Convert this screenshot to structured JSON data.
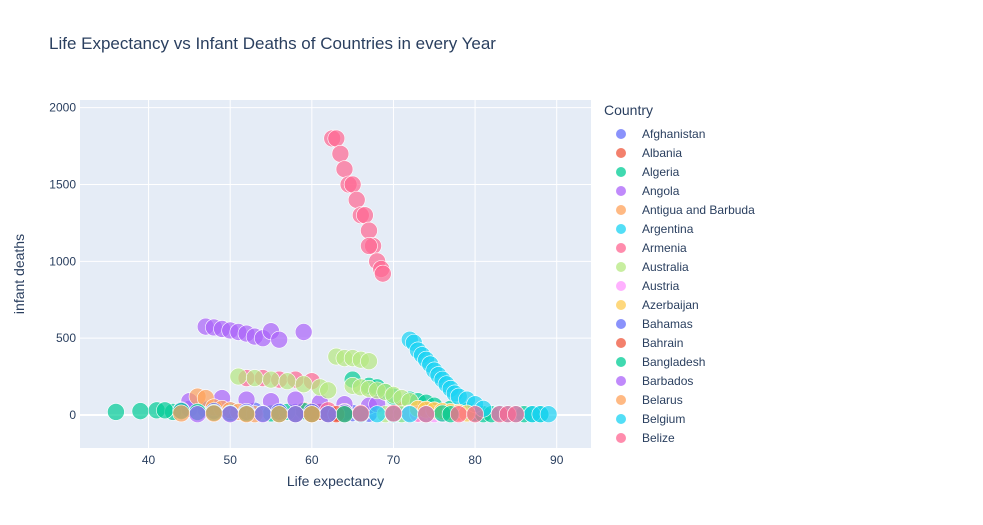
{
  "chart_data": {
    "type": "scatter",
    "title": "Life Expectancy vs Infant Deaths of Countries in every Year",
    "xlabel": "Life expectancy",
    "ylabel": "infant deaths",
    "xlim": [
      31.6,
      94.2
    ],
    "ylim": [
      -215,
      2050
    ],
    "xticks": [
      40,
      50,
      60,
      70,
      80,
      90
    ],
    "yticks": [
      0,
      500,
      1000,
      1500,
      2000
    ],
    "grid": true,
    "legend_title": "Country",
    "legend_position": "right",
    "series": [
      {
        "name": "Afghanistan",
        "color": "#636efa",
        "points": [
          [
            45,
            40
          ],
          [
            47,
            35
          ],
          [
            50,
            30
          ],
          [
            53,
            28
          ],
          [
            56,
            25
          ],
          [
            58,
            20
          ],
          [
            61,
            18
          ],
          [
            63,
            15
          ],
          [
            65,
            12
          ],
          [
            66,
            10
          ],
          [
            67,
            8
          ]
        ]
      },
      {
        "name": "Albania",
        "color": "#EF553B",
        "points": [
          [
            59,
            30
          ],
          [
            60,
            25
          ],
          [
            61,
            20
          ],
          [
            62,
            15
          ],
          [
            63,
            10
          ],
          [
            71,
            40
          ],
          [
            72,
            5
          ],
          [
            73,
            8
          ]
        ]
      },
      {
        "name": "Algeria",
        "color": "#00cc96",
        "points": [
          [
            36,
            20
          ],
          [
            39,
            25
          ],
          [
            41,
            30
          ],
          [
            43,
            20
          ],
          [
            46,
            15
          ],
          [
            48,
            30
          ],
          [
            50,
            20
          ],
          [
            52,
            15
          ],
          [
            55,
            10
          ],
          [
            57,
            20
          ],
          [
            59,
            25
          ],
          [
            65,
            230
          ],
          [
            67,
            190
          ],
          [
            68,
            180
          ],
          [
            69,
            150
          ],
          [
            70,
            120
          ],
          [
            72,
            100
          ],
          [
            73,
            90
          ],
          [
            74,
            80
          ],
          [
            75,
            60
          ],
          [
            77,
            40
          ],
          [
            78,
            20
          ],
          [
            79,
            25
          ],
          [
            80,
            10
          ],
          [
            81,
            5
          ],
          [
            82,
            5
          ],
          [
            86,
            5
          ],
          [
            87,
            5
          ],
          [
            88,
            5
          ]
        ]
      },
      {
        "name": "Angola",
        "color": "#ab63fa",
        "points": [
          [
            47,
            575
          ],
          [
            48,
            570
          ],
          [
            49,
            560
          ],
          [
            50,
            550
          ],
          [
            51,
            540
          ],
          [
            52,
            530
          ],
          [
            53,
            510
          ],
          [
            54,
            500
          ],
          [
            55,
            545
          ],
          [
            56,
            490
          ],
          [
            59,
            540
          ],
          [
            45,
            90
          ],
          [
            49,
            110
          ],
          [
            52,
            100
          ],
          [
            55,
            90
          ],
          [
            58,
            100
          ],
          [
            61,
            80
          ],
          [
            64,
            70
          ],
          [
            67,
            60
          ],
          [
            68,
            70
          ]
        ]
      },
      {
        "name": "Antigua and Barbuda",
        "color": "#FFA15A",
        "points": [
          [
            46,
            120
          ],
          [
            47,
            110
          ],
          [
            48,
            50
          ],
          [
            49,
            40
          ],
          [
            50,
            30
          ],
          [
            51,
            20
          ],
          [
            52,
            10
          ],
          [
            53,
            5
          ],
          [
            73,
            40
          ],
          [
            74,
            30
          ],
          [
            75,
            25
          ],
          [
            76,
            20
          ],
          [
            77,
            15
          ],
          [
            78,
            10
          ]
        ]
      },
      {
        "name": "Argentina",
        "color": "#19d3f3",
        "points": [
          [
            71,
            5
          ],
          [
            72,
            490
          ],
          [
            72.5,
            470
          ],
          [
            73,
            420
          ],
          [
            73.5,
            390
          ],
          [
            74,
            360
          ],
          [
            74.5,
            330
          ],
          [
            75,
            290
          ],
          [
            75.5,
            260
          ],
          [
            76,
            230
          ],
          [
            76.5,
            200
          ],
          [
            77,
            170
          ],
          [
            77.5,
            140
          ],
          [
            78,
            120
          ],
          [
            79,
            100
          ],
          [
            80,
            70
          ],
          [
            81,
            40
          ],
          [
            83,
            10
          ],
          [
            84,
            5
          ],
          [
            85,
            5
          ],
          [
            87,
            5
          ],
          [
            88,
            5
          ],
          [
            89,
            5
          ]
        ]
      },
      {
        "name": "Armenia",
        "color": "#FF6692",
        "points": [
          [
            62.5,
            1800
          ],
          [
            63,
            1800
          ],
          [
            63.5,
            1700
          ],
          [
            64,
            1600
          ],
          [
            64.5,
            1500
          ],
          [
            65,
            1500
          ],
          [
            65.5,
            1400
          ],
          [
            66,
            1300
          ],
          [
            66.5,
            1300
          ],
          [
            67,
            1200
          ],
          [
            67.5,
            1100
          ],
          [
            67,
            1100
          ],
          [
            68,
            1000
          ],
          [
            68.5,
            950
          ],
          [
            68.7,
            920
          ],
          [
            52,
            240
          ],
          [
            54,
            240
          ],
          [
            56,
            230
          ],
          [
            58,
            230
          ],
          [
            60,
            220
          ],
          [
            62,
            30
          ],
          [
            64,
            20
          ],
          [
            83,
            5
          ],
          [
            84,
            5
          ],
          [
            85,
            5
          ]
        ]
      },
      {
        "name": "Australia",
        "color": "#B6E880",
        "points": [
          [
            51,
            250
          ],
          [
            53,
            240
          ],
          [
            55,
            230
          ],
          [
            57,
            220
          ],
          [
            59,
            200
          ],
          [
            61,
            180
          ],
          [
            62,
            160
          ],
          [
            63,
            380
          ],
          [
            64,
            370
          ],
          [
            65,
            370
          ],
          [
            66,
            360
          ],
          [
            67,
            350
          ],
          [
            65,
            190
          ],
          [
            66,
            180
          ],
          [
            67,
            170
          ],
          [
            68,
            160
          ],
          [
            69,
            150
          ],
          [
            70,
            130
          ],
          [
            71,
            110
          ],
          [
            72,
            90
          ],
          [
            69,
            5
          ],
          [
            70,
            5
          ],
          [
            71,
            5
          ],
          [
            72,
            10
          ]
        ]
      },
      {
        "name": "Austria",
        "color": "#FF97FF",
        "points": [
          [
            72,
            10
          ],
          [
            73,
            8
          ],
          [
            74,
            6
          ],
          [
            75,
            5
          ],
          [
            76,
            5
          ]
        ]
      },
      {
        "name": "Azerbaijan",
        "color": "#FECB52",
        "points": [
          [
            73,
            40
          ],
          [
            74,
            35
          ],
          [
            75,
            30
          ],
          [
            76,
            25
          ],
          [
            77,
            20
          ],
          [
            78,
            15
          ],
          [
            79,
            10
          ]
        ]
      },
      {
        "name": "Bahamas",
        "color": "#636efa",
        "points": [
          [
            44,
            30
          ],
          [
            48,
            25
          ],
          [
            52,
            20
          ],
          [
            56,
            20
          ],
          [
            60,
            20
          ],
          [
            64,
            15
          ],
          [
            66,
            10
          ]
        ]
      },
      {
        "name": "Bahrain",
        "color": "#EF553B",
        "points": [
          [
            58,
            5
          ],
          [
            60,
            5
          ],
          [
            62,
            5
          ],
          [
            63,
            5
          ],
          [
            64,
            5
          ]
        ]
      },
      {
        "name": "Bangladesh",
        "color": "#00cc96",
        "points": [
          [
            42,
            30
          ],
          [
            44,
            25
          ],
          [
            46,
            20
          ],
          [
            48,
            15
          ],
          [
            50,
            10
          ],
          [
            52,
            10
          ],
          [
            54,
            8
          ],
          [
            56,
            5
          ],
          [
            58,
            5
          ],
          [
            60,
            5
          ],
          [
            62,
            5
          ],
          [
            64,
            5
          ],
          [
            66,
            5
          ],
          [
            76,
            10
          ],
          [
            77,
            5
          ]
        ]
      },
      {
        "name": "Barbados",
        "color": "#ab63fa",
        "points": [
          [
            46,
            5
          ],
          [
            50,
            5
          ],
          [
            54,
            5
          ],
          [
            58,
            5
          ],
          [
            62,
            5
          ]
        ]
      },
      {
        "name": "Belarus",
        "color": "#FFA15A",
        "points": [
          [
            44,
            10
          ],
          [
            48,
            10
          ],
          [
            52,
            5
          ],
          [
            56,
            5
          ],
          [
            60,
            5
          ]
        ]
      },
      {
        "name": "Belgium",
        "color": "#19d3f3",
        "points": [
          [
            66,
            5
          ],
          [
            68,
            5
          ],
          [
            70,
            5
          ],
          [
            72,
            5
          ],
          [
            74,
            5
          ]
        ]
      },
      {
        "name": "Belize",
        "color": "#FF6692",
        "points": [
          [
            66,
            10
          ],
          [
            70,
            10
          ],
          [
            74,
            5
          ],
          [
            78,
            5
          ],
          [
            80,
            5
          ]
        ]
      }
    ]
  }
}
